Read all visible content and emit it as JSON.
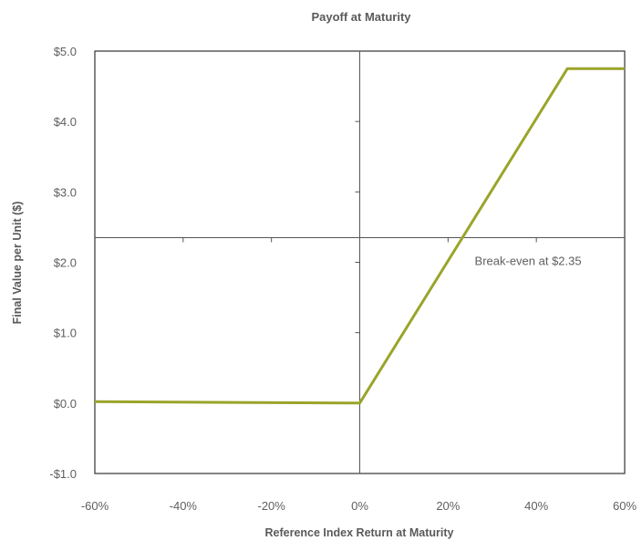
{
  "chart_data": {
    "type": "line",
    "title": "Payoff at Maturity",
    "xlabel": "Reference Index Return at Maturity",
    "ylabel": "Final Value per Unit ($)",
    "xlim": [
      -60,
      60
    ],
    "ylim": [
      -1.0,
      5.0
    ],
    "x_ticks": [
      -60,
      -40,
      -20,
      0,
      20,
      40,
      60
    ],
    "x_tick_labels": [
      "-60%",
      "-40%",
      "-20%",
      "0%",
      "20%",
      "40%",
      "60%"
    ],
    "y_ticks": [
      -1.0,
      0.0,
      1.0,
      2.0,
      3.0,
      4.0,
      5.0
    ],
    "y_tick_labels": [
      "-$1.0",
      "$0.0",
      "$1.0",
      "$2.0",
      "$3.0",
      "$4.0",
      "$5.0"
    ],
    "grid": false,
    "series": [
      {
        "x": [
          -60,
          0,
          47,
          60
        ],
        "y": [
          0.02,
          0.0,
          4.75,
          4.75
        ],
        "color": "#9aa42a"
      }
    ],
    "reference_lines": {
      "horizontal_y": 2.35,
      "vertical_x": 0
    },
    "annotations": [
      {
        "text": "Break-even at $2.35",
        "x": 25,
        "y": 2.35
      }
    ],
    "colors": {
      "series": "#9aa42a",
      "axis": "#333333",
      "text": "#5f5f5f"
    }
  }
}
